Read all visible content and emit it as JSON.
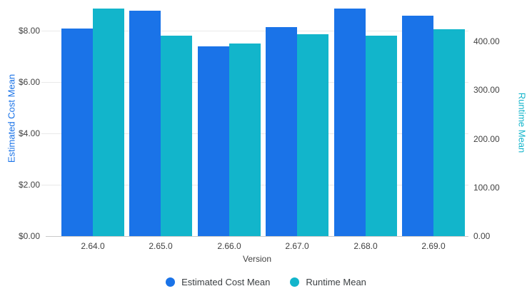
{
  "chart_data": {
    "type": "bar",
    "title": "",
    "xlabel": "Version",
    "categories": [
      "2.64.0",
      "2.65.0",
      "2.66.0",
      "2.67.0",
      "2.68.0",
      "2.69.0"
    ],
    "series": [
      {
        "name": "Estimated Cost Mean",
        "axis": "left",
        "color": "#1a73e8",
        "values": [
          8.09,
          8.78,
          7.39,
          8.14,
          8.86,
          8.58
        ]
      },
      {
        "name": "Runtime Mean",
        "axis": "right",
        "color": "#12b5cb",
        "values": [
          467,
          412,
          396,
          415,
          412,
          425
        ]
      }
    ],
    "left_axis": {
      "label": "Estimated Cost Mean",
      "color": "#1a73e8",
      "ticks": [
        "$0.00",
        "$2.00",
        "$4.00",
        "$6.00",
        "$8.00"
      ],
      "tick_values": [
        0,
        2,
        4,
        6,
        8
      ],
      "range": [
        0,
        9.2
      ]
    },
    "right_axis": {
      "label": "Runtime Mean",
      "color": "#12b5cb",
      "ticks": [
        "0.00",
        "100.00",
        "200.00",
        "300.00",
        "400.00"
      ],
      "tick_values": [
        0,
        100,
        200,
        300,
        400
      ],
      "range": [
        0,
        485
      ]
    },
    "legend": {
      "position": "bottom",
      "items": [
        "Estimated Cost Mean",
        "Runtime Mean"
      ]
    },
    "grid": true,
    "colors": {
      "background": "#ffffff",
      "gridline": "#e9e9e9",
      "axis_line": "#c9c9c9",
      "tick_text": "#424242",
      "legend_text": "#3c4043"
    }
  }
}
